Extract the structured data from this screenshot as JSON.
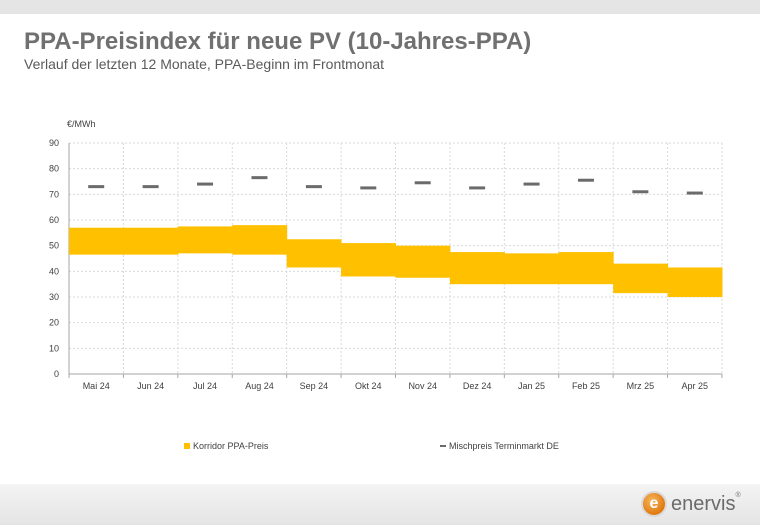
{
  "title": "PPA-Preisindex für neue PV (10-Jahres-PPA)",
  "subtitle": "Verlauf der letzten 12 Monate, PPA-Beginn im Frontmonat",
  "logo": {
    "text": "enervis",
    "mark": "e",
    "reg": "®"
  },
  "colors": {
    "corridor": "#ffc000",
    "mix": "#6b6b6b",
    "grid": "#d9d9d9",
    "axis": "#a6a6a6",
    "text": "#404040"
  },
  "chart_data": {
    "type": "bar",
    "ylabel": "€/MWh",
    "ylim": [
      0,
      90
    ],
    "yticks": [
      0,
      10,
      20,
      30,
      40,
      50,
      60,
      70,
      80,
      90
    ],
    "grid": true,
    "legend_placement": "bottom",
    "categories": [
      "Mai 24",
      "Jun 24",
      "Jul 24",
      "Aug 24",
      "Sep 24",
      "Okt 24",
      "Nov 24",
      "Dez 24",
      "Jan 25",
      "Feb 25",
      "Mrz 25",
      "Apr 25"
    ],
    "series": [
      {
        "name": "Korridor PPA-Preis",
        "type": "range",
        "low": [
          46.5,
          46.5,
          47.0,
          46.5,
          41.5,
          38.0,
          37.5,
          35.0,
          35.0,
          35.0,
          31.5,
          30.0
        ],
        "high": [
          57.0,
          57.0,
          57.5,
          58.0,
          52.5,
          51.0,
          50.0,
          47.5,
          47.0,
          47.5,
          43.0,
          41.5
        ]
      },
      {
        "name": "Mischpreis Terminmarkt DE",
        "type": "marker",
        "values": [
          73.0,
          73.0,
          74.0,
          76.5,
          73.0,
          72.5,
          74.5,
          72.5,
          74.0,
          75.5,
          71.0,
          70.5
        ]
      }
    ]
  }
}
